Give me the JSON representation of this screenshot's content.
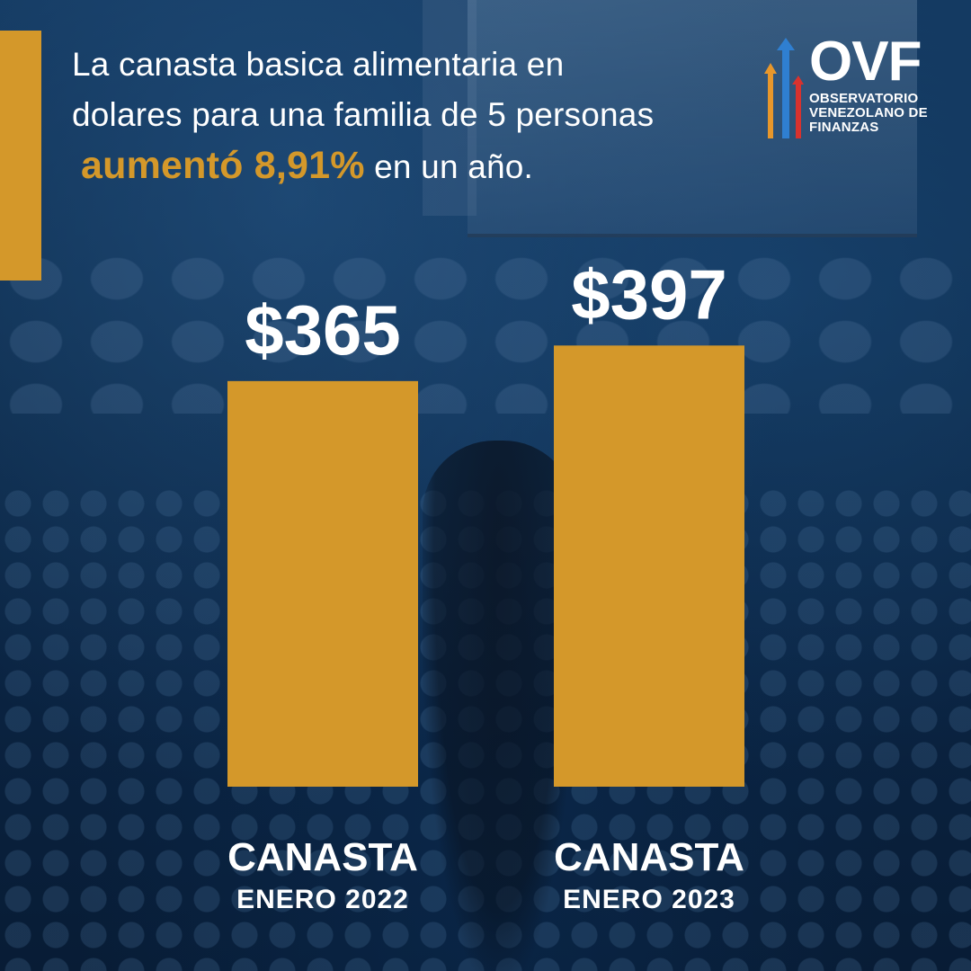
{
  "headline": {
    "line1": "La canasta basica alimentaria en",
    "line2": "dolares para una familia de 5 personas",
    "highlight": "aumentó 8,91%",
    "line3_rest": "en  un año."
  },
  "logo": {
    "word": "OVF",
    "line1": "OBSERVATORIO",
    "line2": "VENEZOLANO DE",
    "line3": "FINANZAS"
  },
  "colors": {
    "accent": "#d4982a",
    "background": "#0d2b4b",
    "text": "#ffffff",
    "logo_arrow_orange": "#e8972b",
    "logo_arrow_blue": "#2f7fd1",
    "logo_arrow_red": "#d8322e"
  },
  "chart_data": {
    "type": "bar",
    "categories": [
      {
        "main": "CANASTA",
        "sub": "ENERO 2022"
      },
      {
        "main": "CANASTA",
        "sub": "ENERO 2023"
      }
    ],
    "values": [
      365,
      397
    ],
    "value_labels": [
      "$365",
      "$397"
    ],
    "bar_color": "#d4982a"
  }
}
